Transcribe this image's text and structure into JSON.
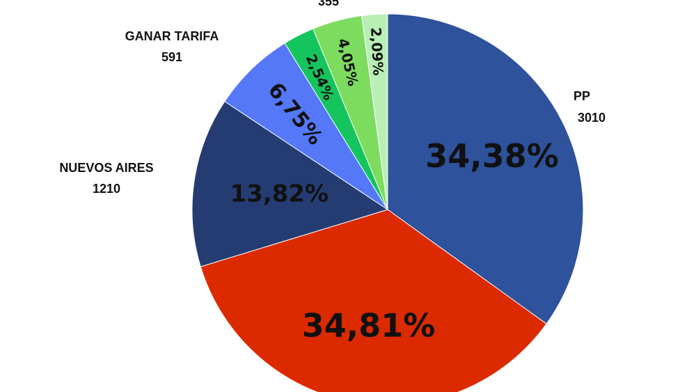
{
  "chart_data": {
    "type": "pie",
    "start_angle_deg": 0,
    "direction": "clockwise",
    "slices": [
      {
        "name": "PP",
        "label_name": "PP",
        "label_value": "3010",
        "percent": 34.38,
        "percent_label": "34,38%",
        "color": "#2e529c"
      },
      {
        "name": "",
        "label_name": "",
        "label_value": "",
        "percent": 34.81,
        "percent_label": "34,81%",
        "color": "#dc2a00"
      },
      {
        "name": "NUEVOS AIRES",
        "label_name": "NUEVOS AIRES",
        "label_value": "1210",
        "percent": 13.82,
        "percent_label": "13,82%",
        "color": "#253c73"
      },
      {
        "name": "GANAR TARIFA",
        "label_name": "GANAR TARIFA",
        "label_value": "591",
        "percent": 6.75,
        "percent_label": "6,75%",
        "color": "#5578f8"
      },
      {
        "name": "",
        "label_name": "",
        "label_value": "",
        "percent": 2.54,
        "percent_label": "2,54%",
        "color": "#14c45d"
      },
      {
        "name": "",
        "label_name": "",
        "label_value": "355",
        "percent": 4.05,
        "percent_label": "4,05%",
        "color": "#7ddb5f"
      },
      {
        "name": "",
        "label_name": "",
        "label_value": "",
        "percent": 2.09,
        "percent_label": "2,09%",
        "color": "#b9eeb4"
      }
    ]
  }
}
